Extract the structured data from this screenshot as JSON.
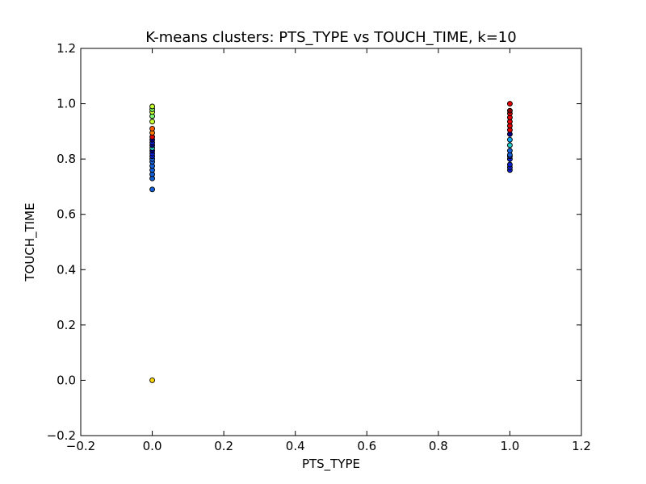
{
  "chart_data": {
    "type": "scatter",
    "title": "K-means clusters: PTS_TYPE vs TOUCH_TIME, k=10",
    "xlabel": "PTS_TYPE",
    "ylabel": "TOUCH_TIME",
    "xlim": [
      -0.2,
      1.2
    ],
    "ylim": [
      -0.2,
      1.2
    ],
    "xticks": [
      -0.2,
      0.0,
      0.2,
      0.4,
      0.6,
      0.8,
      1.0,
      1.2
    ],
    "yticks": [
      -0.2,
      0.0,
      0.2,
      0.4,
      0.6,
      0.8,
      1.0,
      1.2
    ],
    "xtick_labels": [
      "−0.2",
      "0.0",
      "0.2",
      "0.4",
      "0.6",
      "0.8",
      "1.0",
      "1.2"
    ],
    "ytick_labels": [
      "−0.2",
      "0.0",
      "0.2",
      "0.4",
      "0.6",
      "0.8",
      "1.0",
      "1.2"
    ],
    "grid": false,
    "legend": "none",
    "points": [
      {
        "x": 0,
        "y": 0.69,
        "color": "#1560d8"
      },
      {
        "x": 0,
        "y": 0.73,
        "color": "#1560d8"
      },
      {
        "x": 0,
        "y": 0.745,
        "color": "#1560d8"
      },
      {
        "x": 0,
        "y": 0.76,
        "color": "#1560d8"
      },
      {
        "x": 0,
        "y": 0.775,
        "color": "#1560d8"
      },
      {
        "x": 0,
        "y": 0.79,
        "color": "#1560d8"
      },
      {
        "x": 0,
        "y": 0.8,
        "color": "#1560d8"
      },
      {
        "x": 0,
        "y": 0.81,
        "color": "#0a1fd0"
      },
      {
        "x": 0,
        "y": 0.82,
        "color": "#0a1fd0"
      },
      {
        "x": 0,
        "y": 0.83,
        "color": "#000080"
      },
      {
        "x": 0,
        "y": 0.84,
        "color": "#26d0c8"
      },
      {
        "x": 0,
        "y": 0.85,
        "color": "#000080"
      },
      {
        "x": 0,
        "y": 0.86,
        "color": "#0a1fd0"
      },
      {
        "x": 0,
        "y": 0.87,
        "color": "#000080"
      },
      {
        "x": 0,
        "y": 0.88,
        "color": "#e00000"
      },
      {
        "x": 0,
        "y": 0.895,
        "color": "#ff7a00"
      },
      {
        "x": 0,
        "y": 0.91,
        "color": "#ff5a00"
      },
      {
        "x": 0,
        "y": 0.935,
        "color": "#c8ff30"
      },
      {
        "x": 0,
        "y": 0.955,
        "color": "#80ff70"
      },
      {
        "x": 0,
        "y": 0.97,
        "color": "#c8ff30"
      },
      {
        "x": 0,
        "y": 0.98,
        "color": "#80ff70"
      },
      {
        "x": 0,
        "y": 0.99,
        "color": "#c8ff30"
      },
      {
        "x": 0,
        "y": 0.0,
        "color": "#ffd700"
      },
      {
        "x": 1,
        "y": 0.76,
        "color": "#0a1fd0"
      },
      {
        "x": 1,
        "y": 0.77,
        "color": "#0a1fd0"
      },
      {
        "x": 1,
        "y": 0.78,
        "color": "#0a1fd0"
      },
      {
        "x": 1,
        "y": 0.8,
        "color": "#0a1fd0"
      },
      {
        "x": 1,
        "y": 0.81,
        "color": "#0a1fd0"
      },
      {
        "x": 1,
        "y": 0.815,
        "color": "#1560d8"
      },
      {
        "x": 1,
        "y": 0.83,
        "color": "#1560d8"
      },
      {
        "x": 1,
        "y": 0.85,
        "color": "#26d0c8"
      },
      {
        "x": 1,
        "y": 0.87,
        "color": "#00a8ff"
      },
      {
        "x": 1,
        "y": 0.89,
        "color": "#000080"
      },
      {
        "x": 1,
        "y": 0.905,
        "color": "#e00000"
      },
      {
        "x": 1,
        "y": 0.92,
        "color": "#e00000"
      },
      {
        "x": 1,
        "y": 0.935,
        "color": "#e00000"
      },
      {
        "x": 1,
        "y": 0.95,
        "color": "#e00000"
      },
      {
        "x": 1,
        "y": 0.965,
        "color": "#e00000"
      },
      {
        "x": 1,
        "y": 0.975,
        "color": "#800000"
      },
      {
        "x": 1,
        "y": 1.0,
        "color": "#e00000"
      }
    ]
  }
}
